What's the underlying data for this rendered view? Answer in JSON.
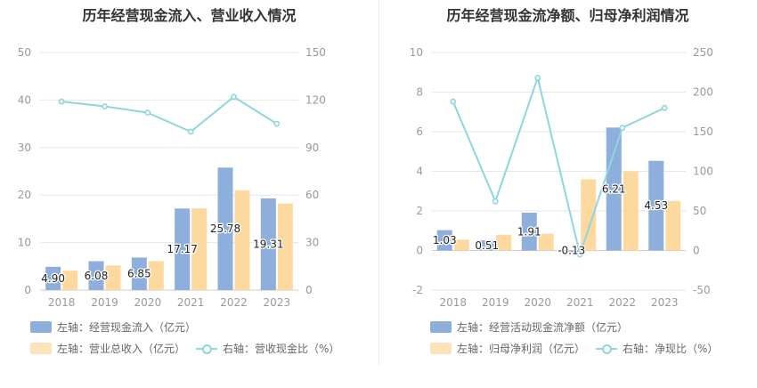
{
  "colors": {
    "bar1": "#8eaedc",
    "bar2": "#fdd9a0",
    "line": "#8ed6dd",
    "grid": "#e6e6e6",
    "axis_text": "#999999"
  },
  "chart_data": [
    {
      "type": "bar",
      "title": "历年经营现金流入、营业收入情况",
      "categories": [
        "2018",
        "2019",
        "2020",
        "2021",
        "2022",
        "2023"
      ],
      "left_ticks": [
        "0",
        "10",
        "20",
        "30",
        "40",
        "50"
      ],
      "right_ticks": [
        "0",
        "30",
        "60",
        "90",
        "120",
        "150"
      ],
      "ylim_left": [
        0,
        50
      ],
      "ylim_right": [
        0,
        150
      ],
      "series": [
        {
          "name": "左轴：经营现金流入（亿元）",
          "axis": "left",
          "kind": "bar",
          "values": [
            4.9,
            6.08,
            6.85,
            17.17,
            25.78,
            19.31
          ],
          "labels": [
            "4.90",
            "6.08",
            "6.85",
            "17.17",
            "25.78",
            "19.31"
          ]
        },
        {
          "name": "左轴：营业总收入（亿元）",
          "axis": "left",
          "kind": "bar",
          "values": [
            4.1,
            5.2,
            6.1,
            17.2,
            21.0,
            18.2
          ]
        },
        {
          "name": "右轴：营收现金比（%）",
          "axis": "right",
          "kind": "line",
          "values": [
            119,
            116,
            112,
            100,
            122,
            105
          ]
        }
      ]
    },
    {
      "type": "bar",
      "title": "历年经营现金流净额、归母净利润情况",
      "categories": [
        "2018",
        "2019",
        "2020",
        "2021",
        "2022",
        "2023"
      ],
      "left_ticks": [
        "-2",
        "0",
        "2",
        "4",
        "6",
        "8",
        "10"
      ],
      "right_ticks": [
        "-50",
        "0",
        "50",
        "100",
        "150",
        "200",
        "250"
      ],
      "ylim_left": [
        -2,
        10
      ],
      "ylim_right": [
        -50,
        250
      ],
      "series": [
        {
          "name": "左轴：经营活动现金流净额（亿元）",
          "axis": "left",
          "kind": "bar",
          "values": [
            1.03,
            0.51,
            1.91,
            -0.13,
            6.21,
            4.53
          ],
          "labels": [
            "1.03",
            "0.51",
            "1.91",
            "-0.13",
            "6.21",
            "4.53"
          ]
        },
        {
          "name": "左轴：归母净利润（亿元）",
          "axis": "left",
          "kind": "bar",
          "values": [
            0.55,
            0.8,
            0.85,
            3.6,
            4.0,
            2.5
          ]
        },
        {
          "name": "右轴：净现比（%）",
          "axis": "right",
          "kind": "line",
          "values": [
            188,
            62,
            218,
            -5,
            155,
            180
          ]
        }
      ]
    }
  ]
}
